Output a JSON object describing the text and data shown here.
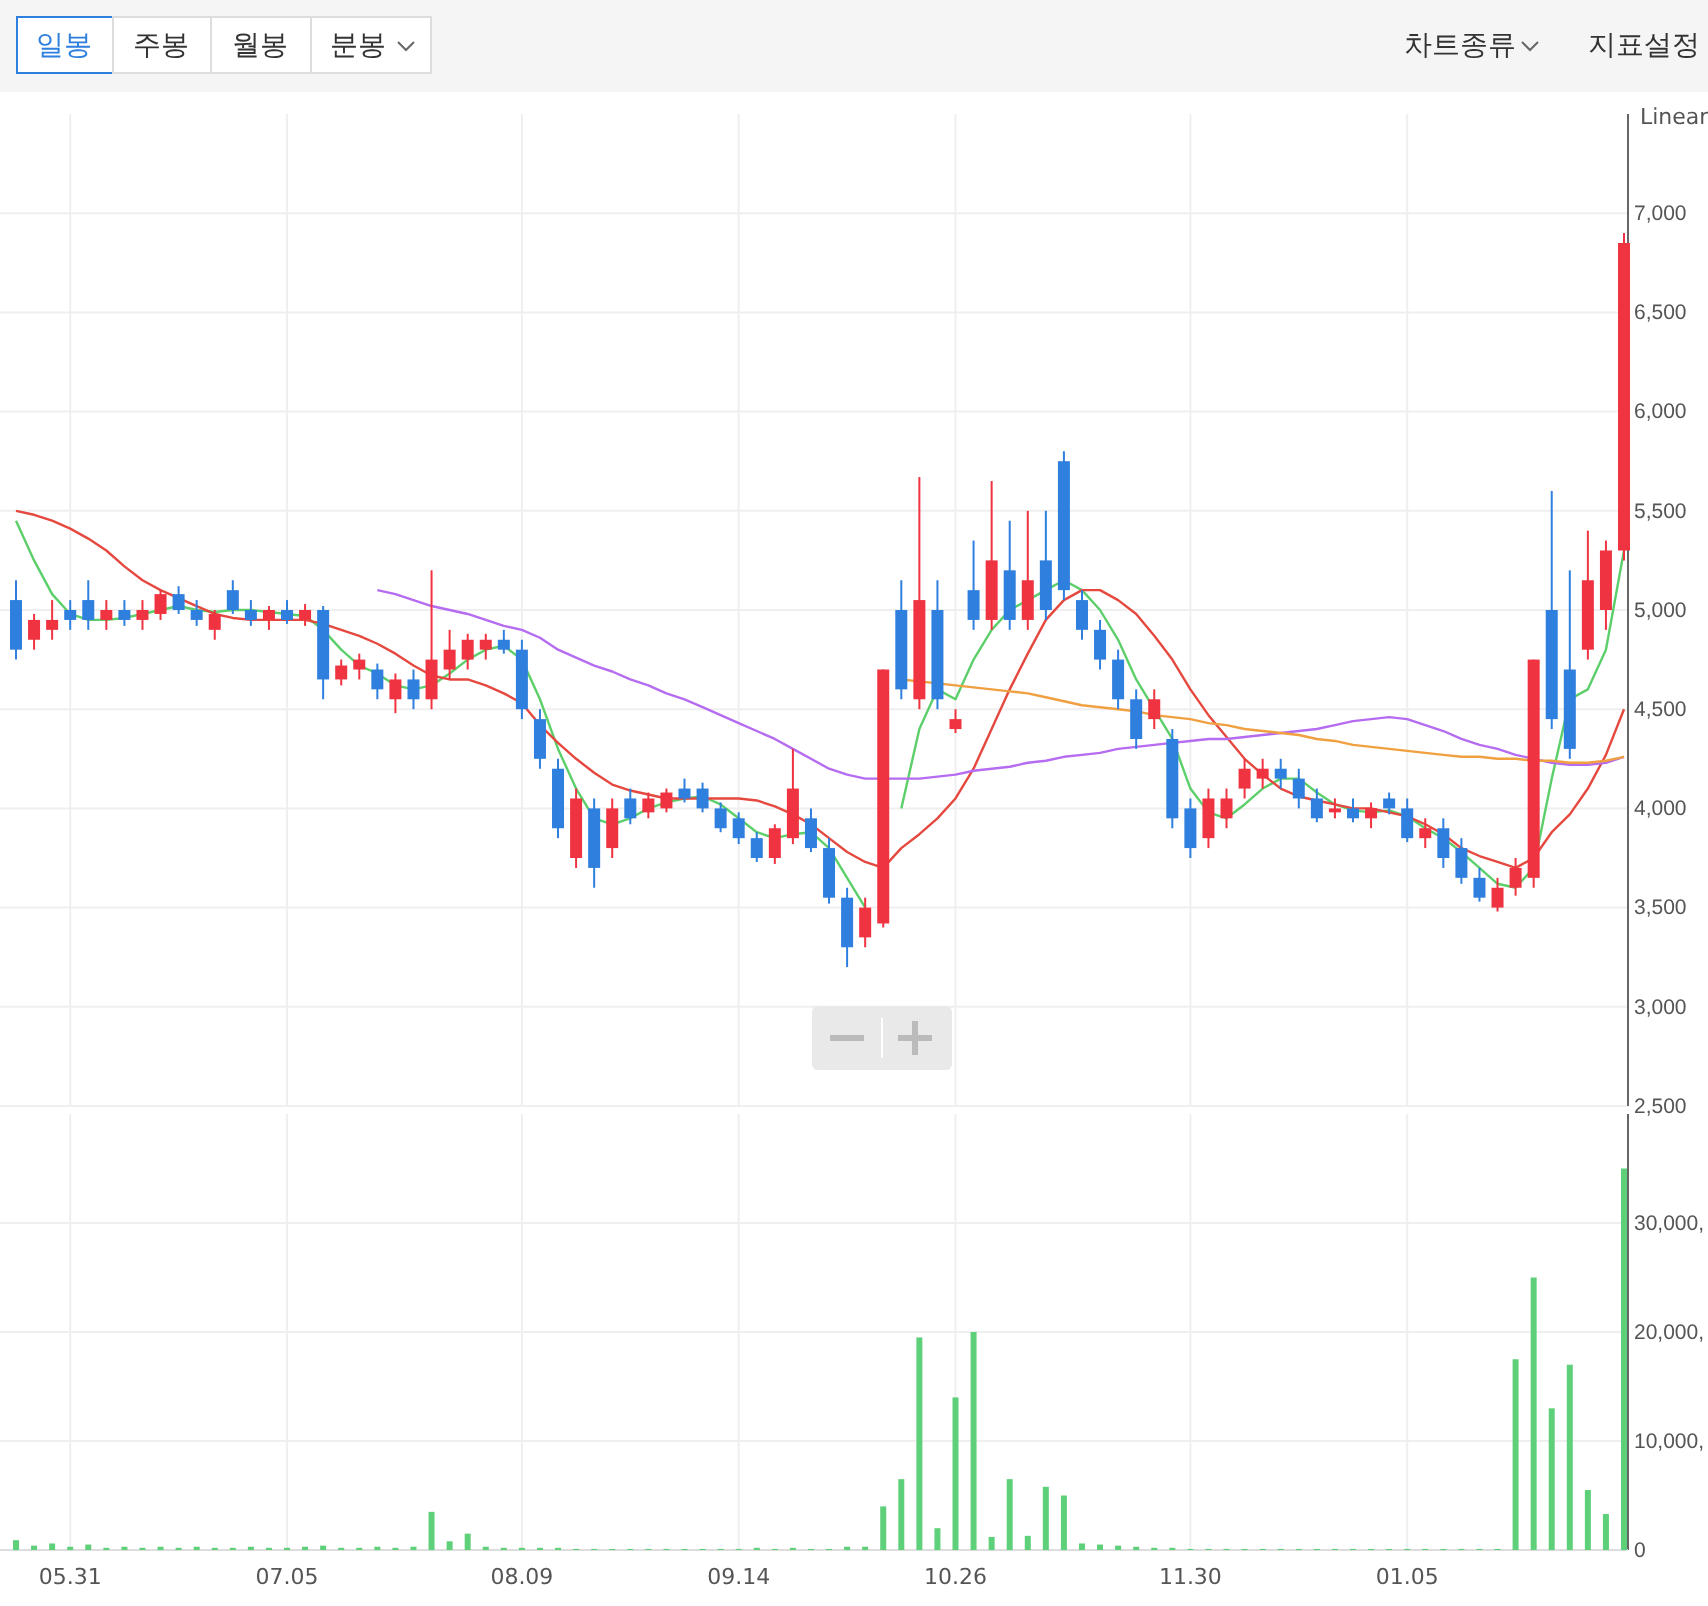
{
  "chart_data": [
    {
      "type": "candlestick",
      "annotations": [
        "일봉",
        "주봉",
        "월봉",
        "분봉",
        "차트종류",
        "지표설정",
        "Linear"
      ],
      "categories": [
        null,
        null,
        null,
        "05.31",
        null,
        null,
        null,
        null,
        null,
        null,
        null,
        null,
        null,
        null,
        null,
        "07.05",
        null,
        null,
        null,
        null,
        null,
        null,
        null,
        null,
        null,
        null,
        null,
        null,
        "08.09",
        null,
        null,
        null,
        null,
        null,
        null,
        null,
        null,
        null,
        null,
        null,
        "09.14",
        null,
        null,
        null,
        null,
        null,
        null,
        null,
        null,
        null,
        null,
        null,
        "10.26",
        null,
        null,
        null,
        null,
        null,
        null,
        null,
        null,
        null,
        null,
        null,
        null,
        "11.30",
        null,
        null,
        null,
        null,
        null,
        null,
        null,
        null,
        null,
        null,
        null,
        "01.05",
        null,
        null,
        null,
        null,
        null,
        null,
        null,
        null,
        null,
        null,
        null,
        null
      ],
      "ohlc": [
        [
          5050,
          5150,
          4750,
          4800
        ],
        [
          4850,
          4980,
          4800,
          4950
        ],
        [
          4900,
          5050,
          4850,
          4950
        ],
        [
          5000,
          5050,
          4900,
          4950
        ],
        [
          5050,
          5150,
          4900,
          4950
        ],
        [
          4950,
          5050,
          4900,
          5000
        ],
        [
          5000,
          5050,
          4920,
          4950
        ],
        [
          4950,
          5050,
          4900,
          5000
        ],
        [
          4980,
          5100,
          4950,
          5080
        ],
        [
          5080,
          5120,
          4980,
          5000
        ],
        [
          5000,
          5050,
          4920,
          4950
        ],
        [
          4900,
          5000,
          4850,
          4980
        ],
        [
          5100,
          5150,
          4980,
          5000
        ],
        [
          5000,
          5050,
          4920,
          4950
        ],
        [
          4950,
          5020,
          4900,
          5000
        ],
        [
          5000,
          5050,
          4930,
          4950
        ],
        [
          4950,
          5030,
          4920,
          5000
        ],
        [
          5000,
          5020,
          4550,
          4650
        ],
        [
          4650,
          4750,
          4620,
          4720
        ],
        [
          4700,
          4780,
          4650,
          4750
        ],
        [
          4700,
          4730,
          4550,
          4600
        ],
        [
          4550,
          4680,
          4480,
          4650
        ],
        [
          4650,
          4700,
          4500,
          4550
        ],
        [
          4550,
          5200,
          4500,
          4750
        ],
        [
          4700,
          4900,
          4650,
          4800
        ],
        [
          4750,
          4880,
          4700,
          4850
        ],
        [
          4800,
          4880,
          4750,
          4850
        ],
        [
          4850,
          4900,
          4780,
          4800
        ],
        [
          4800,
          4850,
          4450,
          4500
        ],
        [
          4450,
          4500,
          4200,
          4250
        ],
        [
          4200,
          4250,
          3850,
          3900
        ],
        [
          3750,
          4100,
          3700,
          4050
        ],
        [
          4000,
          4050,
          3600,
          3700
        ],
        [
          3800,
          4050,
          3750,
          4000
        ],
        [
          4050,
          4100,
          3920,
          3950
        ],
        [
          3980,
          4080,
          3950,
          4050
        ],
        [
          4000,
          4100,
          3980,
          4080
        ],
        [
          4100,
          4150,
          4030,
          4050
        ],
        [
          4100,
          4130,
          3980,
          4000
        ],
        [
          4000,
          4030,
          3880,
          3900
        ],
        [
          3950,
          3980,
          3820,
          3850
        ],
        [
          3850,
          3880,
          3730,
          3750
        ],
        [
          3750,
          3920,
          3720,
          3900
        ],
        [
          3850,
          4300,
          3820,
          4100
        ],
        [
          3950,
          4000,
          3780,
          3800
        ],
        [
          3800,
          3850,
          3520,
          3550
        ],
        [
          3550,
          3600,
          3200,
          3300
        ],
        [
          3350,
          3550,
          3300,
          3500
        ],
        [
          3420,
          4700,
          3400,
          4700
        ],
        [
          5000,
          5150,
          4550,
          4600
        ],
        [
          4550,
          5670,
          4500,
          5050
        ],
        [
          5000,
          5150,
          4500,
          4550
        ],
        [
          4400,
          4500,
          4380,
          4450
        ],
        [
          5100,
          5350,
          4900,
          4950
        ],
        [
          4950,
          5650,
          4900,
          5250
        ],
        [
          5200,
          5450,
          4900,
          4950
        ],
        [
          4950,
          5500,
          4900,
          5150
        ],
        [
          5250,
          5500,
          4950,
          5000
        ],
        [
          5750,
          5800,
          5050,
          5100
        ],
        [
          5050,
          5100,
          4850,
          4900
        ],
        [
          4900,
          4950,
          4700,
          4750
        ],
        [
          4750,
          4800,
          4500,
          4550
        ],
        [
          4550,
          4600,
          4300,
          4350
        ],
        [
          4450,
          4600,
          4400,
          4550
        ],
        [
          4350,
          4400,
          3900,
          3950
        ],
        [
          4000,
          4050,
          3750,
          3800
        ],
        [
          3850,
          4100,
          3800,
          4050
        ],
        [
          3950,
          4100,
          3900,
          4050
        ],
        [
          4100,
          4250,
          4050,
          4200
        ],
        [
          4150,
          4250,
          4100,
          4200
        ],
        [
          4200,
          4250,
          4100,
          4150
        ],
        [
          4150,
          4200,
          4000,
          4050
        ],
        [
          4050,
          4100,
          3930,
          3950
        ],
        [
          3980,
          4050,
          3950,
          4000
        ],
        [
          4000,
          4050,
          3930,
          3950
        ],
        [
          3950,
          4030,
          3900,
          4000
        ],
        [
          4050,
          4080,
          3970,
          4000
        ],
        [
          4000,
          4050,
          3830,
          3850
        ],
        [
          3850,
          3950,
          3800,
          3900
        ],
        [
          3900,
          3950,
          3700,
          3750
        ],
        [
          3800,
          3850,
          3620,
          3650
        ],
        [
          3650,
          3700,
          3530,
          3550
        ],
        [
          3500,
          3650,
          3480,
          3600
        ],
        [
          3600,
          3750,
          3560,
          3700
        ],
        [
          3650,
          4750,
          3600,
          4750
        ],
        [
          5000,
          5600,
          4400,
          4450
        ],
        [
          4700,
          5200,
          4250,
          4300
        ],
        [
          4800,
          5400,
          4750,
          5150
        ],
        [
          5000,
          5350,
          4900,
          5300
        ],
        [
          5300,
          6900,
          5250,
          6850
        ]
      ],
      "colors": [
        "#2f7fde",
        "#ef3340",
        "#ef3340",
        "#2f7fde",
        "#2f7fde",
        "#ef3340",
        "#2f7fde",
        "#ef3340",
        "#ef3340",
        "#2f7fde",
        "#2f7fde",
        "#ef3340",
        "#2f7fde",
        "#2f7fde",
        "#ef3340",
        "#2f7fde",
        "#ef3340",
        "#2f7fde",
        "#ef3340",
        "#ef3340",
        "#2f7fde",
        "#ef3340",
        "#2f7fde",
        "#ef3340",
        "#ef3340",
        "#ef3340",
        "#ef3340",
        "#2f7fde",
        "#2f7fde",
        "#2f7fde",
        "#2f7fde",
        "#ef3340",
        "#2f7fde",
        "#ef3340",
        "#2f7fde",
        "#ef3340",
        "#ef3340",
        "#2f7fde",
        "#2f7fde",
        "#2f7fde",
        "#2f7fde",
        "#2f7fde",
        "#ef3340",
        "#ef3340",
        "#2f7fde",
        "#2f7fde",
        "#2f7fde",
        "#ef3340",
        "#ef3340",
        "#2f7fde",
        "#ef3340",
        "#2f7fde",
        "#ef3340",
        "#2f7fde",
        "#ef3340",
        "#2f7fde",
        "#ef3340",
        "#2f7fde",
        "#2f7fde",
        "#2f7fde",
        "#2f7fde",
        "#2f7fde",
        "#2f7fde",
        "#ef3340",
        "#2f7fde",
        "#2f7fde",
        "#ef3340",
        "#ef3340",
        "#ef3340",
        "#ef3340",
        "#2f7fde",
        "#2f7fde",
        "#2f7fde",
        "#ef3340",
        "#2f7fde",
        "#ef3340",
        "#2f7fde",
        "#2f7fde",
        "#ef3340",
        "#2f7fde",
        "#2f7fde",
        "#2f7fde",
        "#ef3340",
        "#ef3340",
        "#ef3340",
        "#2f7fde",
        "#2f7fde",
        "#ef3340",
        "#ef3340",
        "#ef3340"
      ],
      "series": [
        {
          "type": "line",
          "color": "#5ccf6b",
          "values": [
            5450,
            5250,
            5080,
            4980,
            4950,
            4950,
            4960,
            4980,
            5000,
            5020,
            5000,
            4990,
            5000,
            5000,
            4990,
            4980,
            4970,
            4900,
            4800,
            4720,
            4680,
            4620,
            4600,
            4620,
            4680,
            4750,
            4800,
            4820,
            4750,
            4550,
            4300,
            4100,
            3950,
            3920,
            3950,
            4000,
            4030,
            4050,
            4060,
            4020,
            3950,
            3880,
            3850,
            3870,
            3880,
            3800,
            3650,
            3500,
            null,
            4000,
            4400,
            4600,
            4550,
            4750,
            4900,
            5000,
            5050,
            5100,
            5150,
            5100,
            5000,
            4850,
            4650,
            4500,
            4350,
            4100,
            3980,
            3950,
            4020,
            4100,
            4150,
            4150,
            4080,
            4020,
            3990,
            3980,
            3990,
            3960,
            3900,
            3850,
            3780,
            3700,
            3620,
            3600,
            3700,
            4150,
            4550,
            4600,
            4800,
            5300
          ]
        },
        {
          "type": "line",
          "color": "#e5483e",
          "values": [
            5500,
            5480,
            5450,
            5410,
            5360,
            5300,
            5220,
            5150,
            5100,
            5060,
            5020,
            4980,
            4960,
            4950,
            4950,
            4950,
            4950,
            4930,
            4900,
            4870,
            4830,
            4780,
            4720,
            4670,
            4650,
            4650,
            4620,
            4580,
            4530,
            4420,
            4330,
            4250,
            4180,
            4120,
            4090,
            4070,
            4050,
            4050,
            4050,
            4050,
            4050,
            4040,
            4010,
            3970,
            3920,
            3850,
            3780,
            3730,
            3700,
            3800,
            3870,
            3950,
            4050,
            4200,
            4400,
            4600,
            4780,
            4950,
            5050,
            5100,
            5100,
            5050,
            4980,
            4870,
            4750,
            4600,
            4470,
            4360,
            4250,
            4170,
            4100,
            4060,
            4040,
            4020,
            4000,
            4000,
            3980,
            3960,
            3920,
            3870,
            3800,
            3760,
            3730,
            3700,
            3750,
            3880,
            3970,
            4100,
            4270,
            4500
          ]
        },
        {
          "type": "line",
          "color": "#b56cf0",
          "values": [
            null,
            null,
            null,
            null,
            null,
            null,
            null,
            null,
            null,
            null,
            null,
            null,
            null,
            null,
            null,
            null,
            null,
            null,
            null,
            null,
            5100,
            5080,
            5050,
            5020,
            5000,
            4980,
            4950,
            4920,
            4900,
            4860,
            4800,
            4760,
            4720,
            4690,
            4650,
            4620,
            4580,
            4550,
            4510,
            4470,
            4430,
            4390,
            4350,
            4300,
            4250,
            4200,
            4170,
            4150,
            4150,
            4150,
            4150,
            4160,
            4170,
            4190,
            4200,
            4210,
            4230,
            4240,
            4260,
            4270,
            4280,
            4300,
            4310,
            4320,
            4330,
            4340,
            4350,
            4350,
            4360,
            4370,
            4380,
            4390,
            4400,
            4420,
            4440,
            4450,
            4460,
            4450,
            4420,
            4390,
            4350,
            4320,
            4300,
            4270,
            4250,
            4230,
            4220,
            4220,
            4230,
            4260
          ]
        },
        {
          "type": "line",
          "color": "#f0a040",
          "values": [
            null,
            null,
            null,
            null,
            null,
            null,
            null,
            null,
            null,
            null,
            null,
            null,
            null,
            null,
            null,
            null,
            null,
            null,
            null,
            null,
            null,
            null,
            null,
            null,
            null,
            null,
            null,
            null,
            null,
            null,
            null,
            null,
            null,
            null,
            null,
            null,
            null,
            null,
            null,
            null,
            null,
            null,
            null,
            null,
            null,
            null,
            null,
            null,
            null,
            4650,
            4640,
            4630,
            4620,
            4610,
            4600,
            4590,
            4580,
            4560,
            4540,
            4520,
            4510,
            4500,
            4490,
            4470,
            4460,
            4450,
            4430,
            4420,
            4400,
            4390,
            4380,
            4370,
            4350,
            4340,
            4320,
            4310,
            4300,
            4290,
            4280,
            4270,
            4260,
            4260,
            4250,
            4250,
            4240,
            4240,
            4230,
            4230,
            4240,
            4260
          ]
        }
      ],
      "ylim": [
        2500,
        7500
      ],
      "yticks": [
        {
          "value": 2500,
          "label": "2,500"
        },
        {
          "value": 3000,
          "label": "3,000"
        },
        {
          "value": 3500,
          "label": "3,500"
        },
        {
          "value": 4000,
          "label": "4,000"
        },
        {
          "value": 4500,
          "label": "4,500"
        },
        {
          "value": 5000,
          "label": "5,000"
        },
        {
          "value": 5500,
          "label": "5,500"
        },
        {
          "value": 6000,
          "label": "6,000"
        },
        {
          "value": 6500,
          "label": "6,500"
        },
        {
          "value": 7000,
          "label": "7,000"
        }
      ],
      "grid": true,
      "tick_labels": "y"
    },
    {
      "type": "bar",
      "color": "#5fd07a",
      "categories": [
        null,
        null,
        null,
        "05.31",
        null,
        null,
        null,
        null,
        null,
        null,
        null,
        null,
        null,
        null,
        null,
        "07.05",
        null,
        null,
        null,
        null,
        null,
        null,
        null,
        null,
        null,
        null,
        null,
        null,
        "08.09",
        null,
        null,
        null,
        null,
        null,
        null,
        null,
        null,
        null,
        null,
        null,
        "09.14",
        null,
        null,
        null,
        null,
        null,
        null,
        null,
        null,
        null,
        null,
        null,
        "10.26",
        null,
        null,
        null,
        null,
        null,
        null,
        null,
        null,
        null,
        null,
        null,
        null,
        "11.30",
        null,
        null,
        null,
        null,
        null,
        null,
        null,
        null,
        null,
        null,
        null,
        "01.05",
        null,
        null,
        null,
        null,
        null,
        null,
        null,
        null,
        null,
        null,
        null,
        null
      ],
      "values": [
        900,
        400,
        600,
        300,
        500,
        200,
        300,
        200,
        300,
        200,
        300,
        200,
        200,
        300,
        200,
        200,
        300,
        400,
        200,
        200,
        300,
        200,
        300,
        3500,
        800,
        1500,
        300,
        200,
        200,
        200,
        200,
        100,
        100,
        100,
        100,
        100,
        100,
        100,
        100,
        100,
        100,
        200,
        100,
        200,
        100,
        100,
        300,
        300,
        4000,
        6500,
        19500,
        2000,
        14000,
        20000,
        1200,
        6500,
        1300,
        5800,
        5000,
        600,
        500,
        400,
        300,
        200,
        200,
        100,
        100,
        100,
        100,
        100,
        100,
        100,
        100,
        100,
        100,
        100,
        100,
        100,
        100,
        100,
        100,
        100,
        100,
        17500,
        25000,
        13000,
        17000,
        5500,
        3300,
        35000
      ],
      "ylim": [
        0,
        40000
      ],
      "yticks": [
        0,
        {
          "value": 10000,
          "label": "10,000,"
        },
        {
          "value": 20000,
          "label": "20,000,"
        },
        {
          "value": 30000,
          "label": "30,000,"
        }
      ],
      "grid": true
    }
  ]
}
